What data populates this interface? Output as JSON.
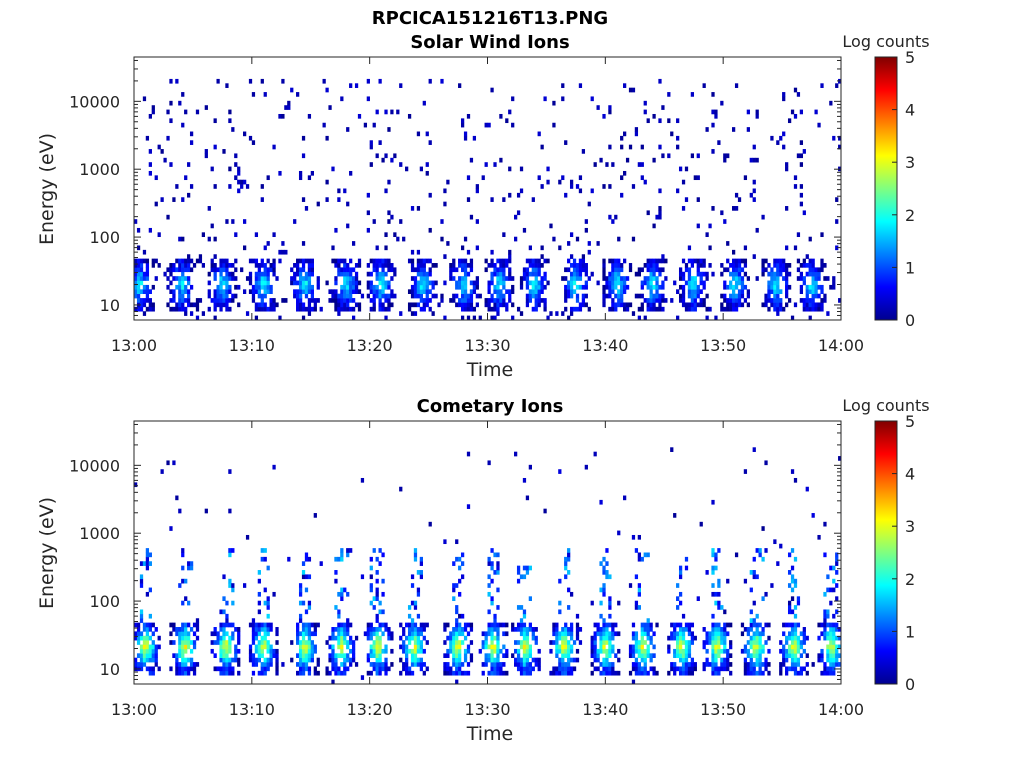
{
  "figure_title": "RPCICA151216T13.PNG",
  "chart_data": [
    {
      "type": "heatmap",
      "title": "Solar Wind Ions",
      "xlabel": "Time",
      "ylabel": "Energy (eV)",
      "x_ticks": [
        "13:00",
        "13:10",
        "13:20",
        "13:30",
        "13:40",
        "13:50",
        "14:00"
      ],
      "x_range": [
        "13:00",
        "14:00"
      ],
      "y_scale": "log",
      "y_ticks": [
        10,
        100,
        1000,
        10000
      ],
      "y_tick_labels": [
        "10",
        "100",
        "1000",
        "10000"
      ],
      "y_range": [
        6,
        45000
      ],
      "colorbar": {
        "label": "Log counts",
        "range": [
          0,
          5
        ],
        "ticks": [
          "0",
          "1",
          "2",
          "3",
          "4",
          "5"
        ],
        "colormap": "jet"
      },
      "pulses_minutes": [
        0.5,
        4.1,
        7.5,
        11,
        14.5,
        18,
        21,
        24.5,
        28,
        31,
        34,
        37.5,
        41,
        44,
        47.5,
        51,
        54.5,
        57.5
      ],
      "pulse_energy_ev": [
        10,
        40
      ],
      "pulse_peak_log_counts": 2.0,
      "background": "sparse single counts (log counts ~0) from 10 to 20000 eV"
    },
    {
      "type": "heatmap",
      "title": "Cometary Ions",
      "xlabel": "Time",
      "ylabel": "Energy (eV)",
      "x_ticks": [
        "13:00",
        "13:10",
        "13:20",
        "13:30",
        "13:40",
        "13:50",
        "14:00"
      ],
      "x_range": [
        "13:00",
        "14:00"
      ],
      "y_scale": "log",
      "y_ticks": [
        10,
        100,
        1000,
        10000
      ],
      "y_tick_labels": [
        "10",
        "100",
        "1000",
        "10000"
      ],
      "y_range": [
        6,
        45000
      ],
      "colorbar": {
        "label": "Log counts",
        "range": [
          0,
          5
        ],
        "ticks": [
          "0",
          "1",
          "2",
          "3",
          "4",
          "5"
        ],
        "colormap": "jet"
      },
      "pulses_minutes": [
        1,
        4.3,
        7.8,
        11,
        14.5,
        17.6,
        20.7,
        23.8,
        27.5,
        30.5,
        33.2,
        36.5,
        40,
        43.2,
        46.5,
        49.5,
        52.8,
        56,
        59.2
      ],
      "pulse_energy_ev": [
        10,
        45
      ],
      "pulse_peak_log_counts": 3.2,
      "background": "sparse counts from 10 to 15000 eV, vertical streaks up to ~500 eV"
    }
  ]
}
